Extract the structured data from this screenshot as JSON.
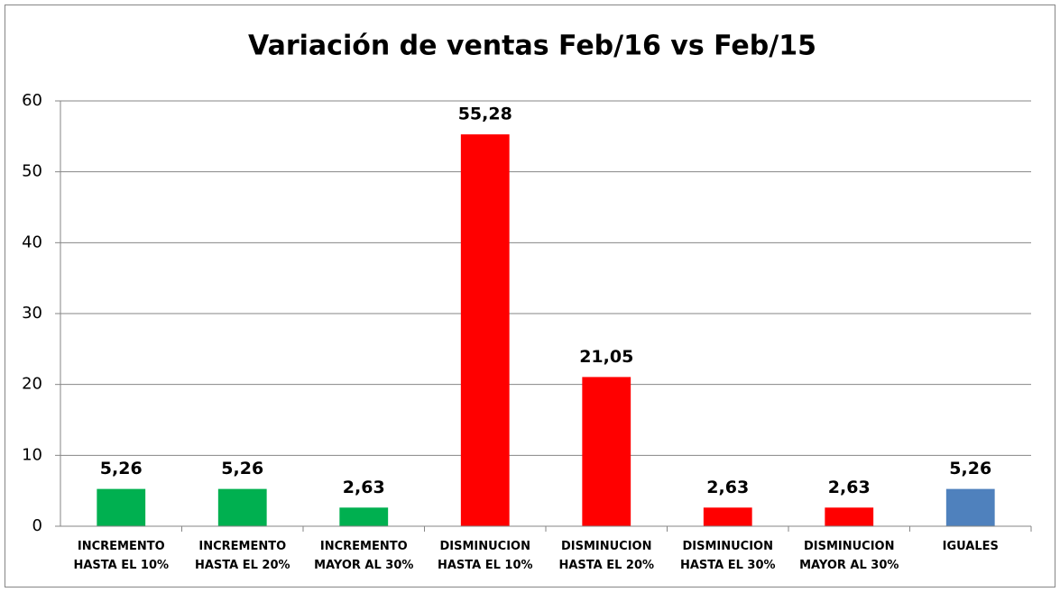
{
  "chart_data": {
    "type": "bar",
    "title": "Variación de ventas Feb/16 vs Feb/15",
    "categories": [
      "INCREMENTO HASTA EL 10%",
      "INCREMENTO HASTA EL 20%",
      "INCREMENTO MAYOR AL 30%",
      "DISMINUCION HASTA EL 10%",
      "DISMINUCION HASTA EL 20%",
      "DISMINUCION HASTA EL 30%",
      "DISMINUCION MAYOR AL 30%",
      "IGUALES"
    ],
    "values": [
      5.26,
      5.26,
      2.63,
      55.28,
      21.05,
      2.63,
      2.63,
      5.26
    ],
    "value_labels": [
      "5,26",
      "5,26",
      "2,63",
      "55,28",
      "21,05",
      "2,63",
      "2,63",
      "5,26"
    ],
    "colors": [
      "#00b050",
      "#00b050",
      "#00b050",
      "#ff0000",
      "#ff0000",
      "#ff0000",
      "#ff0000",
      "#4f81bd"
    ],
    "ylim": [
      0,
      60
    ],
    "yticks": [
      0,
      10,
      20,
      30,
      40,
      50,
      60
    ],
    "grid": true
  }
}
